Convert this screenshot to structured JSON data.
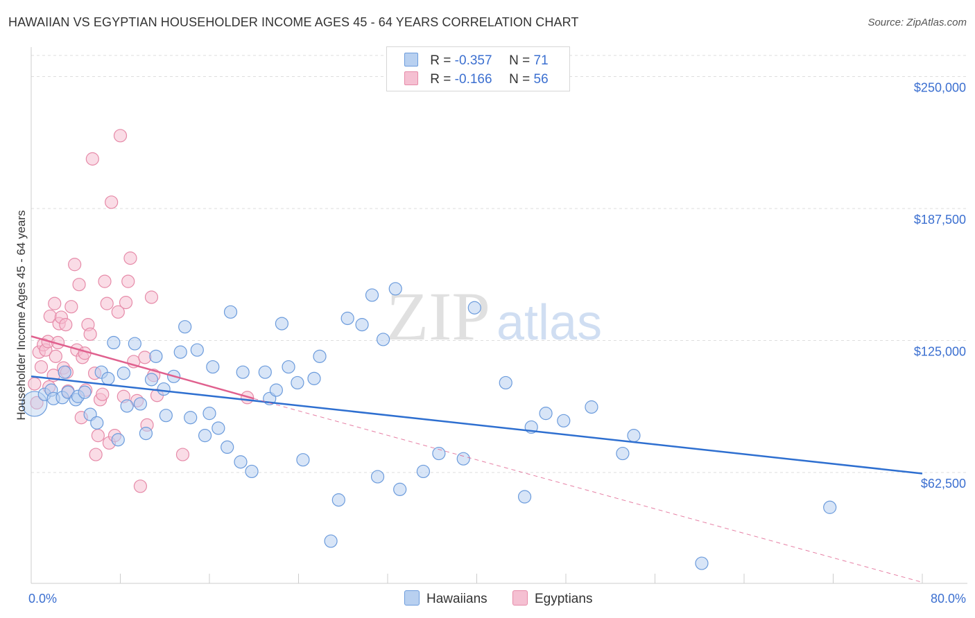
{
  "title": "HAWAIIAN VS EGYPTIAN HOUSEHOLDER INCOME AGES 45 - 64 YEARS CORRELATION CHART",
  "source": "Source: ZipAtlas.com",
  "watermark": {
    "zip": "ZIP",
    "atlas": "atlas"
  },
  "legend": {
    "r_label": "R =",
    "n_label": "N =",
    "rows": [
      {
        "r": "-0.357",
        "n": "71"
      },
      {
        "r": "-0.166",
        "n": "56"
      }
    ]
  },
  "bottom_legend": [
    "Hawaiians",
    "Egyptians"
  ],
  "colors": {
    "blue": "#6b9bdc",
    "blue_fill": "#b8d0f0",
    "blue_line": "#2e6fd0",
    "pink": "#e68aa8",
    "pink_fill": "#f5c0d2",
    "pink_line": "#e0608e",
    "axis_text": "#3b6fd0"
  },
  "chart_data": {
    "type": "scatter",
    "title": "HAWAIIAN VS EGYPTIAN HOUSEHOLDER INCOME AGES 45 - 64 YEARS CORRELATION CHART",
    "ylabel": "Householder Income Ages 45 - 64 years",
    "xlim": [
      0,
      80
    ],
    "ylim": [
      10000,
      260000
    ],
    "x_ticks_labeled": [
      {
        "value": 0,
        "label": "0.0%"
      },
      {
        "value": 80,
        "label": "80.0%"
      }
    ],
    "y_ticks": [
      {
        "value": 62500,
        "label": "$62,500"
      },
      {
        "value": 125000,
        "label": "$125,000"
      },
      {
        "value": 187500,
        "label": "$187,500"
      },
      {
        "value": 250000,
        "label": "$250,000"
      }
    ],
    "series": [
      {
        "name": "Hawaiians",
        "r": -0.357,
        "n": 71,
        "trend": {
          "x": [
            0,
            80
          ],
          "y": [
            108000,
            62000
          ],
          "dashed_extension": false
        },
        "points": [
          [
            0.3,
            95000
          ],
          [
            1.2,
            99500
          ],
          [
            1.8,
            101500
          ],
          [
            2.0,
            97500
          ],
          [
            2.8,
            98000
          ],
          [
            3.0,
            110000
          ],
          [
            3.3,
            100500
          ],
          [
            4.0,
            97000
          ],
          [
            4.2,
            98500
          ],
          [
            4.8,
            100500
          ],
          [
            5.3,
            90000
          ],
          [
            5.9,
            86000
          ],
          [
            6.3,
            110000
          ],
          [
            6.9,
            107000
          ],
          [
            7.4,
            124000
          ],
          [
            7.8,
            78000
          ],
          [
            8.3,
            109500
          ],
          [
            8.6,
            94000
          ],
          [
            9.3,
            123500
          ],
          [
            9.8,
            95000
          ],
          [
            10.3,
            81000
          ],
          [
            10.8,
            106500
          ],
          [
            11.2,
            117500
          ],
          [
            11.9,
            102000
          ],
          [
            12.1,
            89500
          ],
          [
            12.8,
            108000
          ],
          [
            13.4,
            119500
          ],
          [
            13.8,
            131500
          ],
          [
            14.3,
            88500
          ],
          [
            14.9,
            120500
          ],
          [
            15.6,
            80000
          ],
          [
            16.0,
            90500
          ],
          [
            16.3,
            112500
          ],
          [
            16.8,
            83500
          ],
          [
            17.6,
            74500
          ],
          [
            17.9,
            138500
          ],
          [
            18.8,
            67500
          ],
          [
            19.0,
            110000
          ],
          [
            19.8,
            63000
          ],
          [
            21.0,
            110000
          ],
          [
            21.4,
            97500
          ],
          [
            22.0,
            101500
          ],
          [
            22.5,
            133000
          ],
          [
            23.1,
            112500
          ],
          [
            23.9,
            105000
          ],
          [
            24.4,
            68500
          ],
          [
            25.4,
            107000
          ],
          [
            25.9,
            117500
          ],
          [
            26.9,
            30000
          ],
          [
            27.6,
            49500
          ],
          [
            28.4,
            135500
          ],
          [
            29.7,
            132500
          ],
          [
            30.6,
            146500
          ],
          [
            31.1,
            60500
          ],
          [
            31.6,
            125500
          ],
          [
            32.7,
            149500
          ],
          [
            33.1,
            54500
          ],
          [
            35.2,
            63000
          ],
          [
            36.6,
            71500
          ],
          [
            38.8,
            69000
          ],
          [
            39.8,
            140500
          ],
          [
            42.6,
            105000
          ],
          [
            44.3,
            51000
          ],
          [
            44.9,
            84000
          ],
          [
            46.2,
            90500
          ],
          [
            47.8,
            87000
          ],
          [
            50.3,
            93500
          ],
          [
            53.1,
            71500
          ],
          [
            54.1,
            80000
          ],
          [
            60.2,
            19500
          ],
          [
            71.7,
            46000
          ]
        ]
      },
      {
        "name": "Egyptians",
        "r": -0.166,
        "n": 56,
        "trend": {
          "x": [
            0,
            20,
            80
          ],
          "y": [
            127000,
            97500,
            10500
          ],
          "solid_until_x": 20,
          "dashed_extension": true
        },
        "points": [
          [
            0.3,
            104500
          ],
          [
            0.5,
            95500
          ],
          [
            0.7,
            119500
          ],
          [
            0.9,
            112500
          ],
          [
            1.1,
            123000
          ],
          [
            1.3,
            120500
          ],
          [
            1.5,
            124500
          ],
          [
            1.6,
            103000
          ],
          [
            1.7,
            136500
          ],
          [
            2.0,
            108500
          ],
          [
            2.1,
            142500
          ],
          [
            2.2,
            117500
          ],
          [
            2.4,
            124000
          ],
          [
            2.5,
            133000
          ],
          [
            2.7,
            136000
          ],
          [
            2.9,
            112000
          ],
          [
            3.1,
            132500
          ],
          [
            3.2,
            110000
          ],
          [
            3.3,
            101000
          ],
          [
            3.6,
            141000
          ],
          [
            3.9,
            161000
          ],
          [
            4.1,
            120500
          ],
          [
            4.3,
            151500
          ],
          [
            4.5,
            88500
          ],
          [
            4.6,
            117000
          ],
          [
            4.8,
            119000
          ],
          [
            4.9,
            101500
          ],
          [
            5.1,
            132500
          ],
          [
            5.3,
            128000
          ],
          [
            5.5,
            211000
          ],
          [
            5.7,
            109500
          ],
          [
            5.8,
            71000
          ],
          [
            6.0,
            80000
          ],
          [
            6.2,
            97000
          ],
          [
            6.4,
            99500
          ],
          [
            6.6,
            153000
          ],
          [
            6.8,
            142500
          ],
          [
            7.0,
            76500
          ],
          [
            7.2,
            190500
          ],
          [
            7.5,
            80000
          ],
          [
            7.8,
            138500
          ],
          [
            8.0,
            222000
          ],
          [
            8.3,
            98500
          ],
          [
            8.5,
            143000
          ],
          [
            8.7,
            153000
          ],
          [
            8.9,
            164000
          ],
          [
            9.2,
            115000
          ],
          [
            9.5,
            96500
          ],
          [
            9.8,
            56000
          ],
          [
            10.2,
            117000
          ],
          [
            10.4,
            85000
          ],
          [
            10.8,
            145500
          ],
          [
            11.0,
            108500
          ],
          [
            11.3,
            99000
          ],
          [
            13.6,
            71000
          ],
          [
            19.4,
            98000
          ]
        ]
      }
    ]
  }
}
